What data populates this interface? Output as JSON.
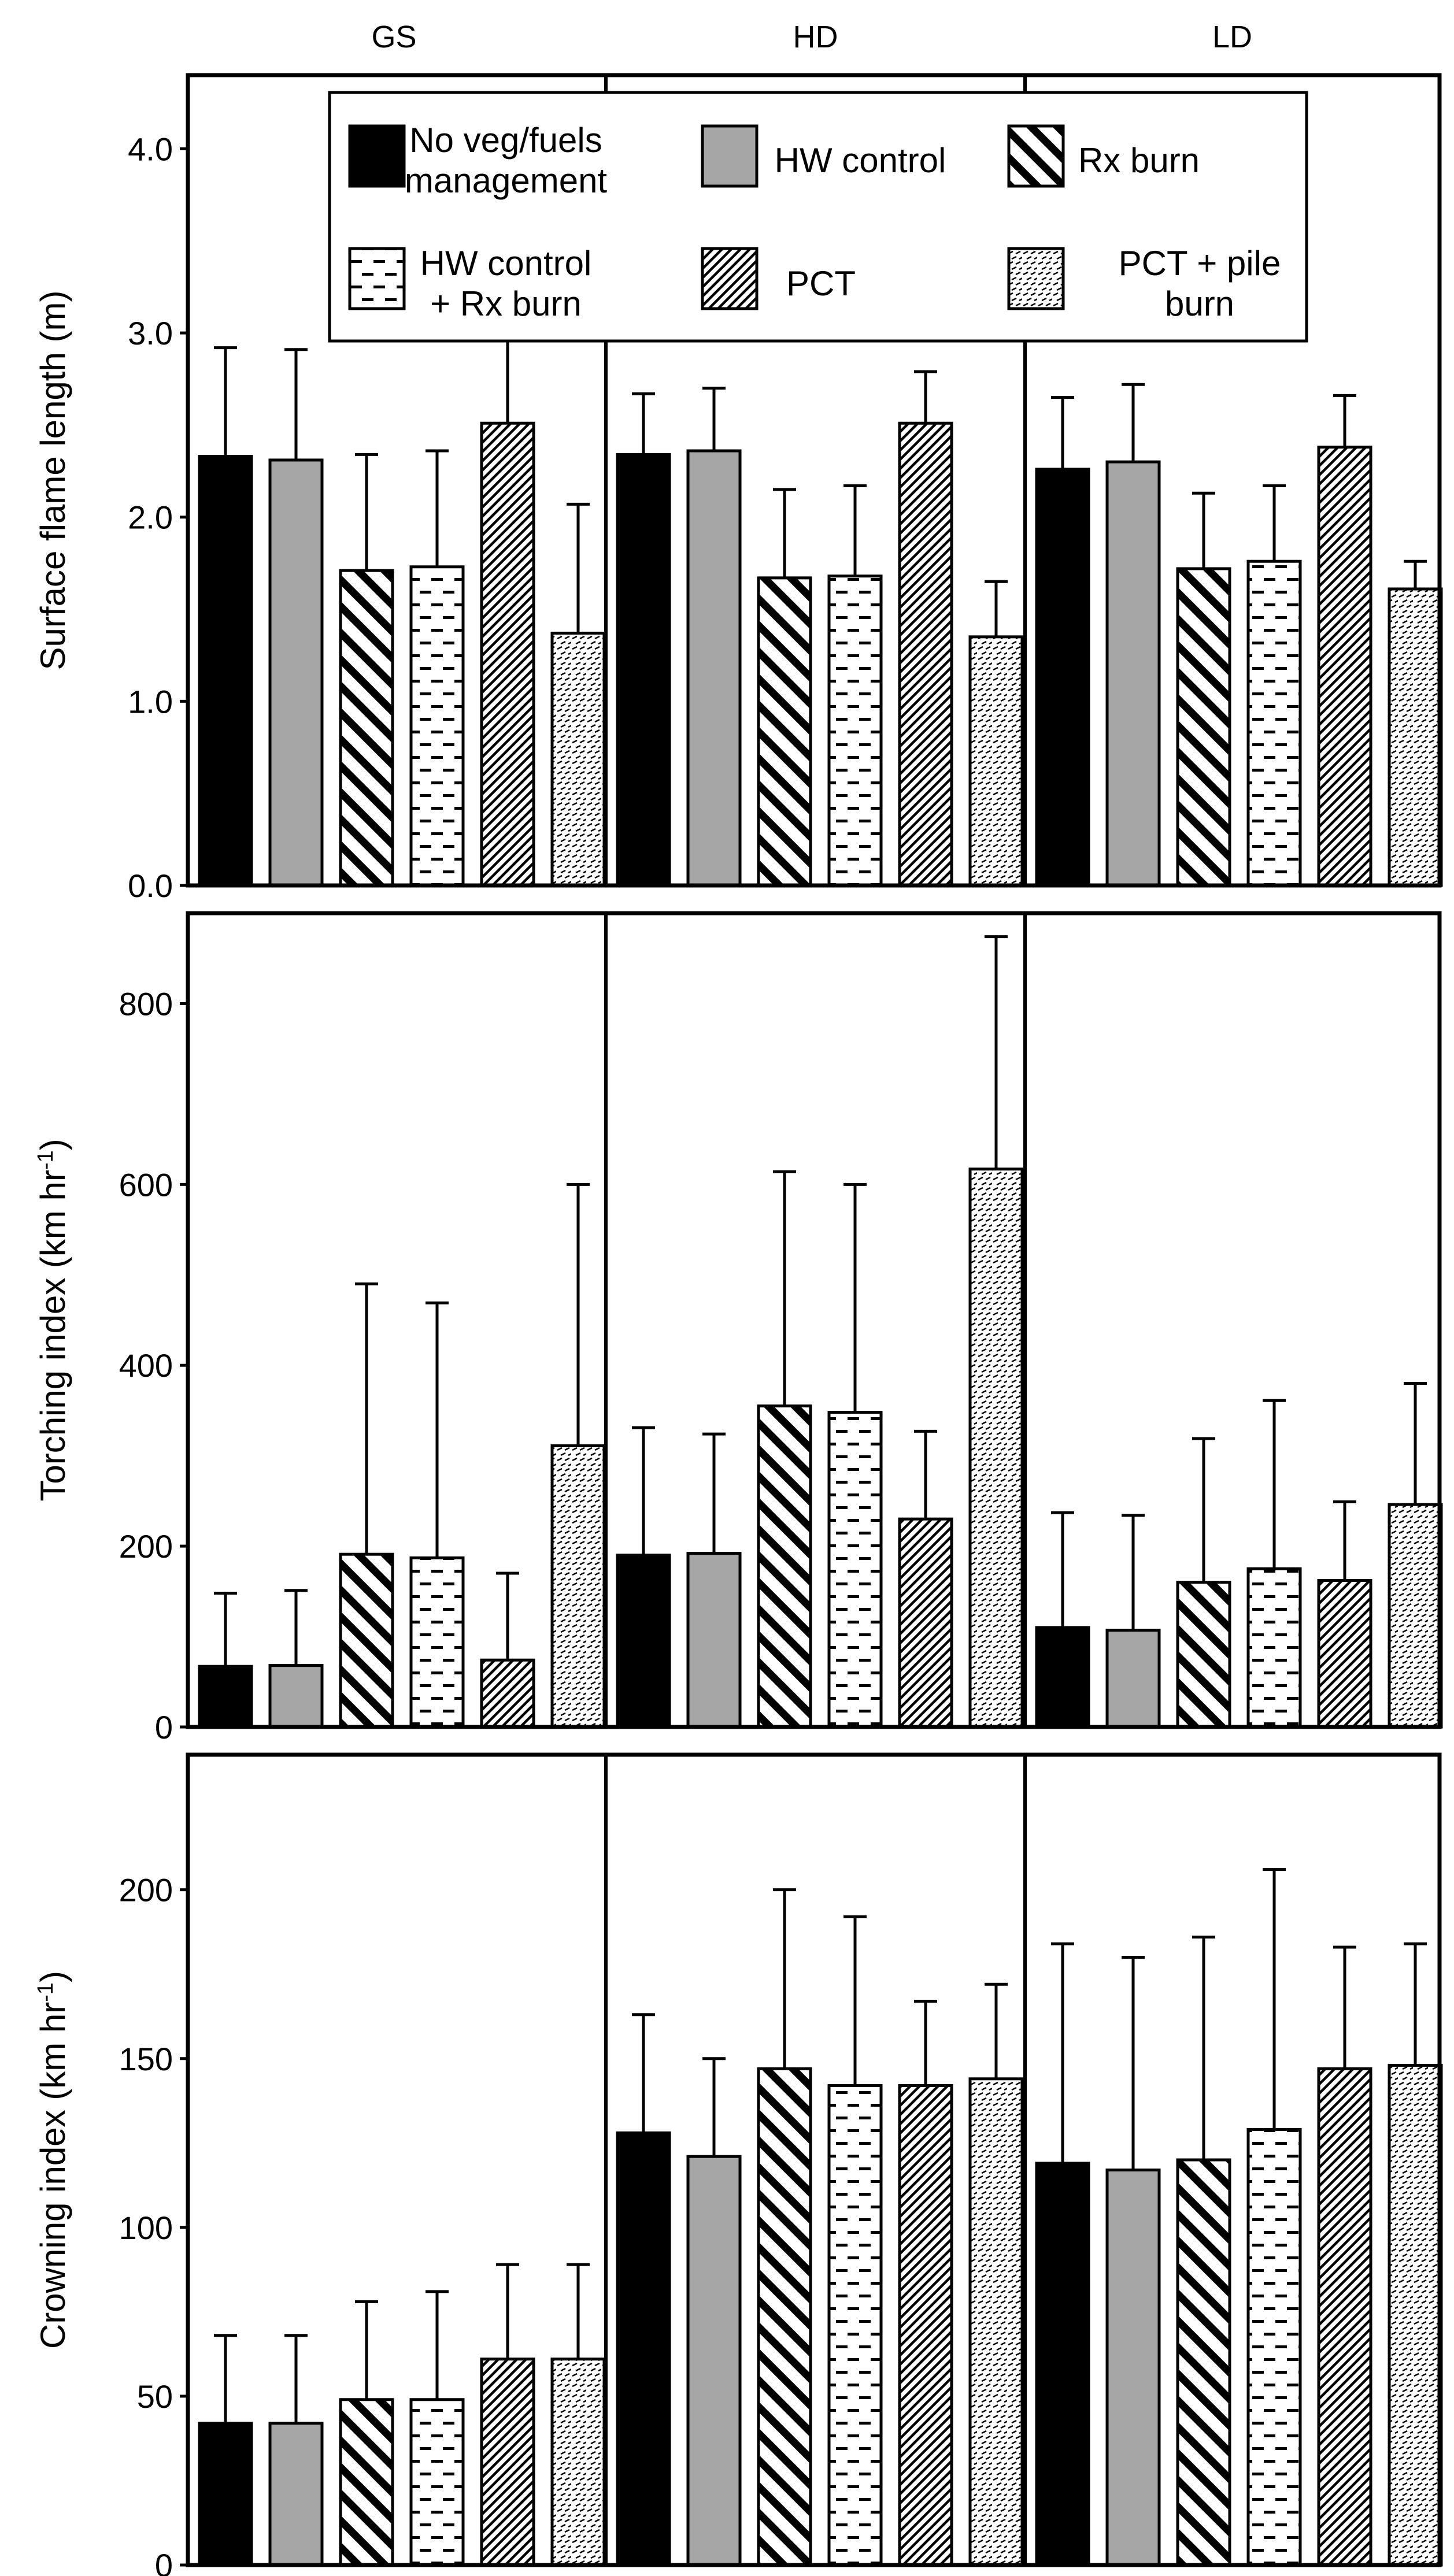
{
  "chart_data": {
    "type": "bar",
    "groups": [
      "GS",
      "HD",
      "LD"
    ],
    "legend": {
      "items": [
        {
          "key": "none",
          "lines": [
            "No veg/fuels",
            "management"
          ]
        },
        {
          "key": "hw",
          "lines": [
            "HW control"
          ]
        },
        {
          "key": "rx",
          "lines": [
            "Rx burn"
          ]
        },
        {
          "key": "hwrx",
          "lines": [
            "HW control",
            "+ Rx burn"
          ]
        },
        {
          "key": "pct",
          "lines": [
            "PCT"
          ]
        },
        {
          "key": "pctpile",
          "lines": [
            "PCT + pile",
            "burn"
          ]
        }
      ]
    },
    "series_order": [
      "none",
      "hw",
      "rx",
      "hwrx",
      "pct",
      "pctpile"
    ],
    "panels": [
      {
        "id": "flame",
        "ylabel": "Surface flame length (m)",
        "ylim": [
          0,
          4.4
        ],
        "ticks": [
          0,
          1,
          2,
          3,
          4
        ],
        "tick_labels": [
          "0.0",
          "1.0",
          "2.0",
          "3.0",
          "4.0"
        ],
        "values": [
          [
            2.33,
            2.31,
            1.71,
            1.73,
            2.51,
            1.37
          ],
          [
            2.34,
            2.36,
            1.67,
            1.68,
            2.51,
            1.35
          ],
          [
            2.26,
            2.3,
            1.72,
            1.76,
            2.38,
            1.61
          ]
        ],
        "errors": [
          [
            0.59,
            0.6,
            0.63,
            0.63,
            0.56,
            0.7
          ],
          [
            0.33,
            0.34,
            0.48,
            0.49,
            0.28,
            0.3
          ],
          [
            0.39,
            0.42,
            0.41,
            0.41,
            0.28,
            0.15
          ]
        ]
      },
      {
        "id": "torching",
        "ylabel": "Torching index (km hr",
        "ylabel_sup": "-1",
        "ylabel_end": ")",
        "ylim": [
          0,
          900
        ],
        "ticks": [
          0,
          200,
          400,
          600,
          800
        ],
        "tick_labels": [
          "0",
          "200",
          "400",
          "600",
          "800"
        ],
        "values": [
          [
            67,
            68,
            191,
            187,
            74,
            311
          ],
          [
            190,
            192,
            355,
            348,
            230,
            617
          ],
          [
            110,
            107,
            160,
            175,
            162,
            246
          ]
        ],
        "errors": [
          [
            81,
            83,
            299,
            282,
            96,
            289
          ],
          [
            141,
            132,
            259,
            252,
            97,
            257
          ],
          [
            127,
            127,
            159,
            186,
            87,
            134
          ]
        ]
      },
      {
        "id": "crowning",
        "ylabel": "Crowning index (km hr",
        "ylabel_sup": "-1",
        "ylabel_end": ")",
        "ylim": [
          0,
          240
        ],
        "ticks": [
          0,
          50,
          100,
          150,
          200
        ],
        "tick_labels": [
          "0",
          "50",
          "100",
          "150",
          "200"
        ],
        "values": [
          [
            42,
            42,
            49,
            49,
            61,
            61
          ],
          [
            128,
            121,
            147,
            142,
            142,
            144
          ],
          [
            119,
            117,
            120,
            129,
            147,
            148
          ]
        ],
        "errors": [
          [
            26,
            26,
            29,
            32,
            28,
            28
          ],
          [
            35,
            29,
            53,
            50,
            25,
            28
          ],
          [
            65,
            63,
            66,
            77,
            36,
            36
          ]
        ]
      }
    ]
  }
}
